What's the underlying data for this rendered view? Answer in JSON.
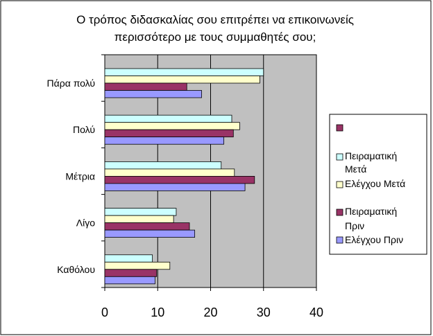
{
  "chart_data": {
    "type": "bar",
    "orientation": "horizontal",
    "title_lines": [
      "Ο τρόπος διδασκαλίας σου επιτρέπει να επικοινωνείς",
      "περισσότερο με τους συμμαθητές σου;"
    ],
    "categories": [
      "Πάρα πολύ",
      "Πολύ",
      "Μέτρια",
      "Λίγο",
      "Καθόλου"
    ],
    "x_ticks": [
      0,
      10,
      20,
      30,
      40
    ],
    "xlim": [
      0,
      40
    ],
    "grid": true,
    "legend_position": "right",
    "legend_extra_entry": {
      "color": "#993366",
      "label": ""
    },
    "series": [
      {
        "name": "Πειραματική Μετά",
        "legend_lines": [
          "Πειραματική",
          "Μετά"
        ],
        "color": "#ccffff",
        "values": [
          30,
          24,
          22,
          13.5,
          9
        ]
      },
      {
        "name": "Ελέγχου Μετά",
        "legend_lines": [
          "Ελέγχου Μετά"
        ],
        "color": "#ffffcc",
        "values": [
          29.3,
          25.5,
          24.5,
          13,
          12.3
        ]
      },
      {
        "name": "Πειραματική Πριν",
        "legend_lines": [
          "Πειραματική",
          "Πριν"
        ],
        "color": "#993366",
        "values": [
          15.5,
          24.3,
          28.3,
          16,
          9.8
        ]
      },
      {
        "name": "Ελέγχου Πριν",
        "legend_lines": [
          "Ελέγχου Πριν"
        ],
        "color": "#9999ff",
        "values": [
          18.3,
          22.5,
          26.5,
          17,
          9.5
        ]
      }
    ],
    "plot_background": "#c0c0c0"
  }
}
